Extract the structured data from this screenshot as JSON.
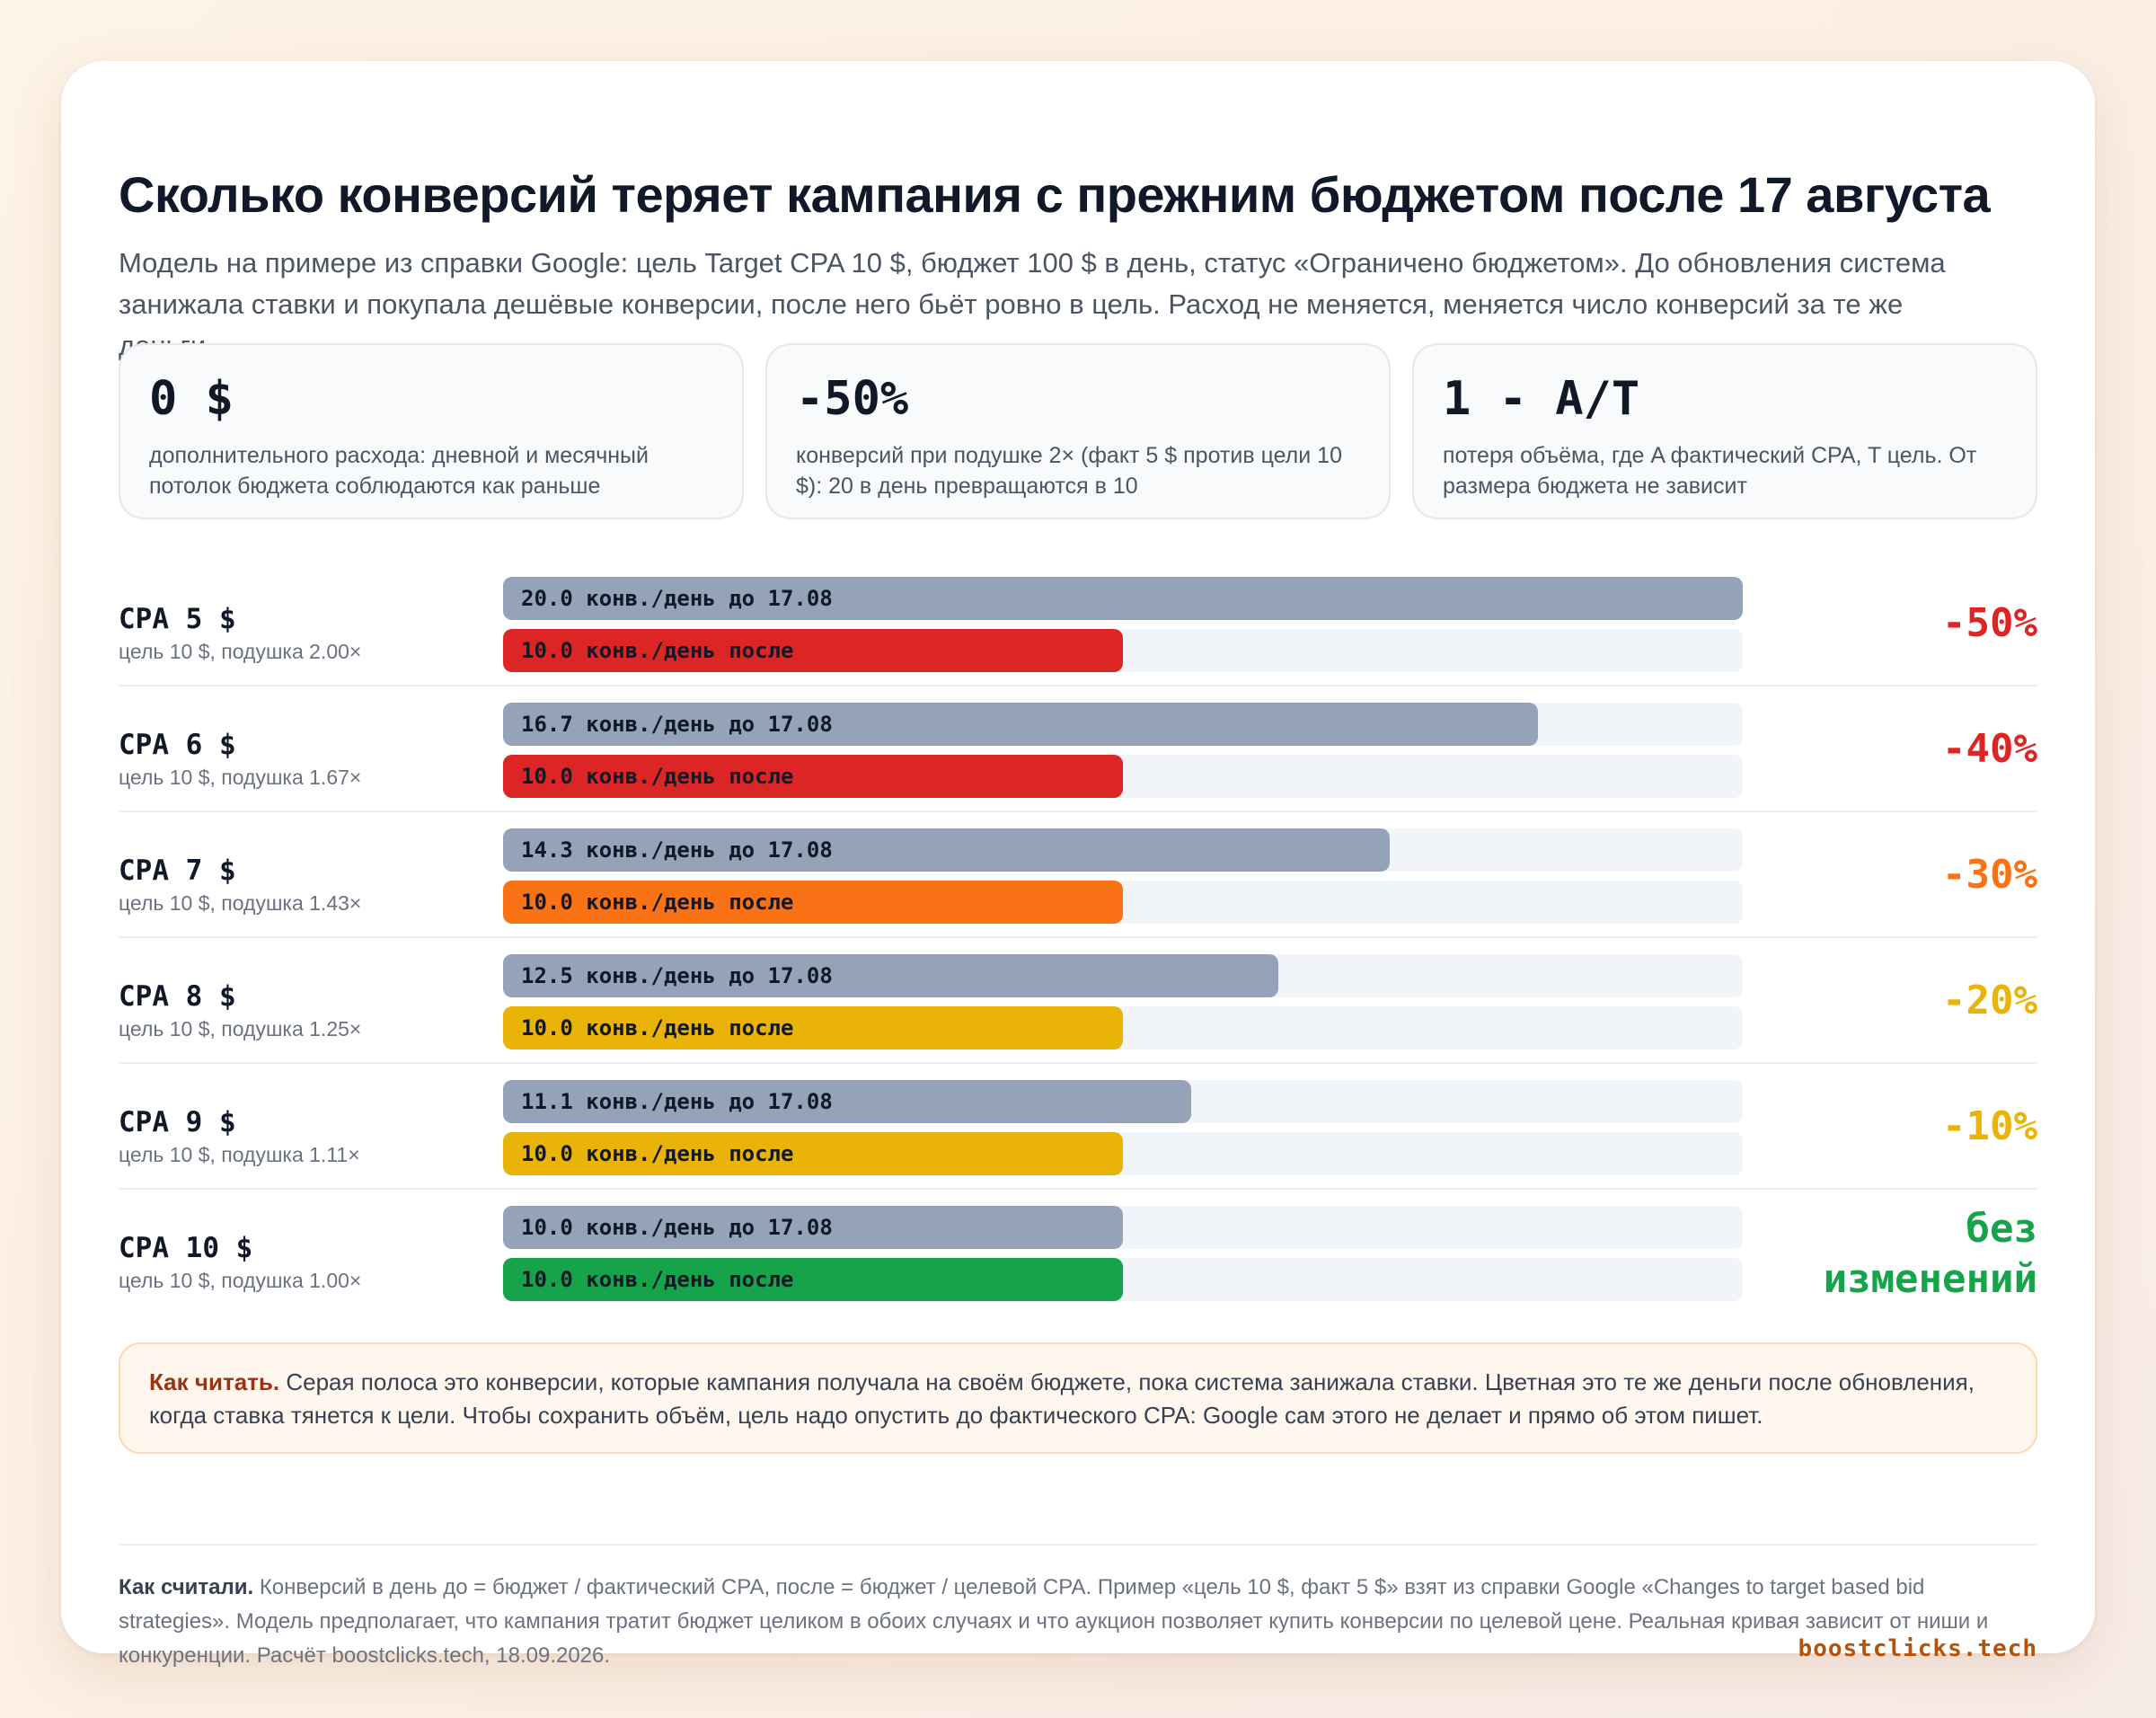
{
  "header": {
    "title": "Сколько конверсий теряет кампания с прежним бюджетом после 17 августа",
    "subtitle": "Модель на примере из справки Google: цель Target CPA 10 $, бюджет 100 $ в день, статус «Ограничено бюджетом». До обновления система занижала ставки и покупала дешёвые конверсии, после него бьёт ровно в цель. Расход не меняется, меняется число конверсий за те же деньги."
  },
  "stats": [
    {
      "value": "0 $",
      "desc": "дополнительного расхода: дневной и месячный потолок бюджета соблюдаются как раньше"
    },
    {
      "value": "-50%",
      "desc": "конверсий при подушке 2× (факт 5 $ против цели 10 $): 20 в день превращаются в 10"
    },
    {
      "value": "1 - A/T",
      "desc": "потеря объёма, где A фактический CPA, T цель. От размера бюджета не зависит"
    }
  ],
  "chart_data": {
    "type": "bar",
    "orientation": "horizontal",
    "x_max": 20,
    "series": [
      {
        "name": "конв./день до 17.08",
        "color": "#94a3b8"
      },
      {
        "name": "конв./день после"
      }
    ],
    "rows": [
      {
        "label": "CPA 5 $",
        "sub": "цель 10 $, подушка 2.00×",
        "before": 20.0,
        "after": 10.0,
        "before_text": "20.0 конв./день до 17.08",
        "after_text": "10.0 конв./день после",
        "delta": "-50%",
        "color": "#dc2626"
      },
      {
        "label": "CPA 6 $",
        "sub": "цель 10 $, подушка 1.67×",
        "before": 16.7,
        "after": 10.0,
        "before_text": "16.7 конв./день до 17.08",
        "after_text": "10.0 конв./день после",
        "delta": "-40%",
        "color": "#dc2626"
      },
      {
        "label": "CPA 7 $",
        "sub": "цель 10 $, подушка 1.43×",
        "before": 14.3,
        "after": 10.0,
        "before_text": "14.3 конв./день до 17.08",
        "after_text": "10.0 конв./день после",
        "delta": "-30%",
        "color": "#f97316"
      },
      {
        "label": "CPA 8 $",
        "sub": "цель 10 $, подушка 1.25×",
        "before": 12.5,
        "after": 10.0,
        "before_text": "12.5 конв./день до 17.08",
        "after_text": "10.0 конв./день после",
        "delta": "-20%",
        "color": "#eab308"
      },
      {
        "label": "CPA 9 $",
        "sub": "цель 10 $, подушка 1.11×",
        "before": 11.1,
        "after": 10.0,
        "before_text": "11.1 конв./день до 17.08",
        "after_text": "10.0 конв./день после",
        "delta": "-10%",
        "color": "#eab308"
      },
      {
        "label": "CPA 10 $",
        "sub": "цель 10 $, подушка 1.00×",
        "before": 10.0,
        "after": 10.0,
        "before_text": "10.0 конв./день до 17.08",
        "after_text": "10.0 конв./день после",
        "delta": "без изменений",
        "color": "#16a34a"
      }
    ]
  },
  "note": {
    "lead": "Как читать.",
    "text": " Серая полоса это конверсии, которые кампания получала на своём бюджете, пока система занижала ставки. Цветная это те же деньги после обновления, когда ставка тянется к цели. Чтобы сохранить объём, цель надо опустить до фактического CPA: Google сам этого не делает и прямо об этом пишет."
  },
  "footer": {
    "lead": "Как считали.",
    "text": " Конверсий в день до = бюджет / фактический CPA, после = бюджет / целевой CPA. Пример «цель 10 $, факт 5 $» взят из справки Google «Changes to target based bid strategies». Модель предполагает, что кампания тратит бюджет целиком в обоих случаях и что аукцион позволяет купить конверсии по целевой цене. Реальная кривая зависит от ниши и конкуренции. Расчёт boostclicks.tech, 18.09.2026.",
    "brand": "boostclicks.tech"
  }
}
